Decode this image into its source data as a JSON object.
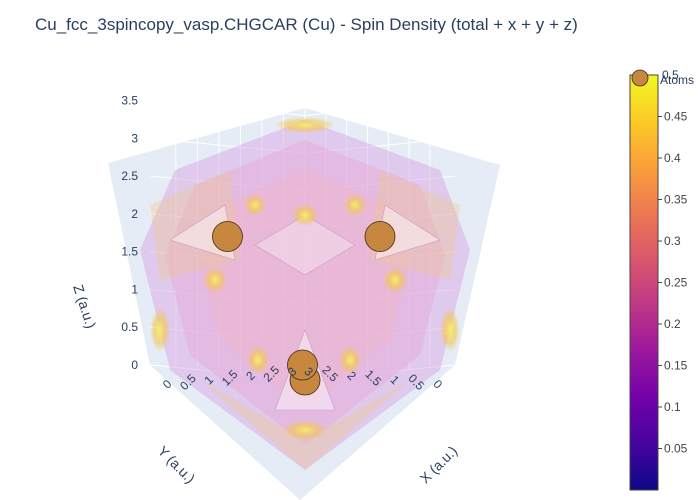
{
  "chart_data": {
    "type": "scatter",
    "title": "Cu_fcc_3spincopy_vasp.CHGCAR (Cu) - Spin Density (total + x + y + z)",
    "axes": {
      "x": {
        "label": "X (a.u.)",
        "ticks": [
          "0",
          "0.5",
          "1",
          "1.5",
          "2",
          "2.5",
          "3"
        ],
        "range": [
          0,
          3.6
        ]
      },
      "y": {
        "label": "Y (a.u.)",
        "ticks": [
          "0",
          "0.5",
          "1",
          "1.5",
          "2",
          "2.5",
          "3"
        ],
        "range": [
          0,
          3.6
        ]
      },
      "z": {
        "label": "Z (a.u.)",
        "ticks": [
          "0",
          "0.5",
          "1",
          "1.5",
          "2",
          "2.5",
          "3",
          "3.5"
        ],
        "range": [
          0,
          3.6
        ]
      }
    },
    "colorbar": {
      "ticks": [
        "0.05",
        "0.1",
        "0.15",
        "0.2",
        "0.25",
        "0.3",
        "0.35",
        "0.4",
        "0.45"
      ],
      "range": [
        0,
        0.5
      ],
      "colorscale": [
        "#0d0887",
        "#46039f",
        "#7201a8",
        "#9c179e",
        "#bd3786",
        "#d8576b",
        "#ed7953",
        "#fb9f3a",
        "#fdca26",
        "#f0f921"
      ]
    },
    "legend": {
      "entry": "Atoms",
      "partial_label": "0.5",
      "placement": "top-right"
    },
    "series": [
      {
        "name": "Atoms",
        "marker_color": "#c8873f",
        "points": [
          {
            "x": 0,
            "y": 0,
            "z": 0
          },
          {
            "x": 1.8,
            "y": 1.8,
            "z": 0
          },
          {
            "x": 1.8,
            "y": 0,
            "z": 1.8
          },
          {
            "x": 0,
            "y": 1.8,
            "z": 1.8
          }
        ]
      }
    ],
    "isosurface_colors": [
      "#d07fd8",
      "#e8a8e0",
      "#f6c24a",
      "#f3e45a"
    ],
    "grid": true
  }
}
